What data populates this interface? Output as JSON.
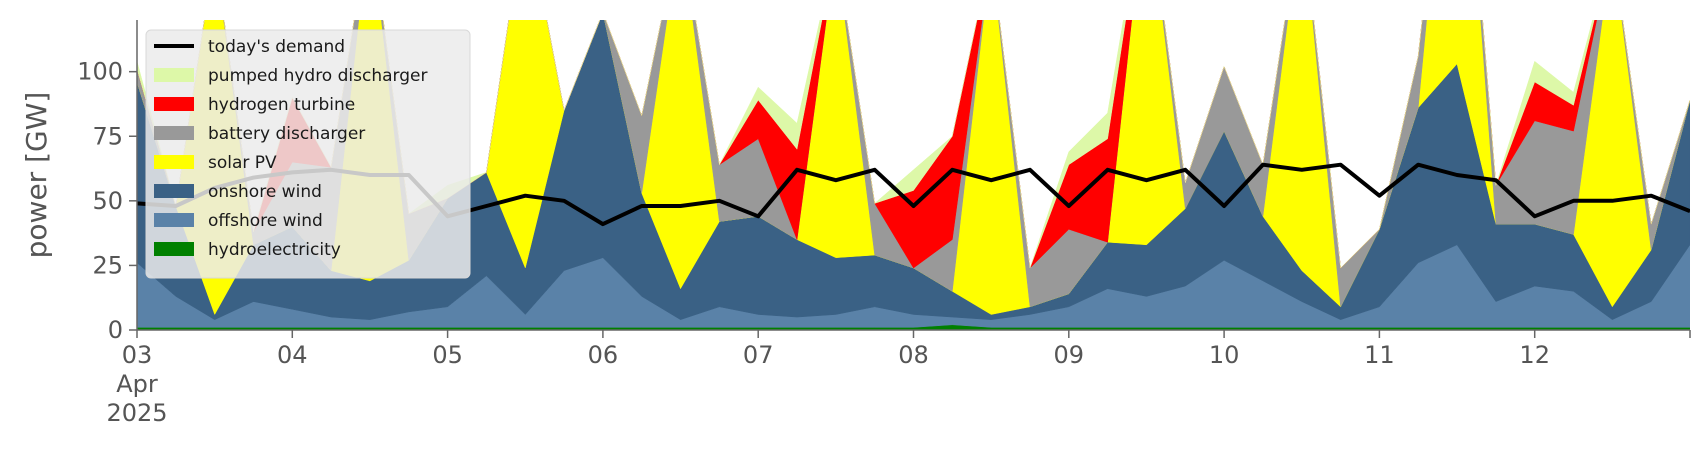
{
  "chart_data": {
    "type": "area",
    "ylabel": "power [GW]",
    "ylim": [
      0,
      120
    ],
    "xlim": [
      "2025-04-03T00:00",
      "2025-04-13T00:00"
    ],
    "yticks": [
      0,
      25,
      50,
      75,
      100
    ],
    "xticks": [
      {
        "x": "2025-04-03",
        "label": "03",
        "sub1": "Apr",
        "sub2": "2025"
      },
      {
        "x": "2025-04-04",
        "label": "04"
      },
      {
        "x": "2025-04-05",
        "label": "05"
      },
      {
        "x": "2025-04-06",
        "label": "06"
      },
      {
        "x": "2025-04-07",
        "label": "07"
      },
      {
        "x": "2025-04-08",
        "label": "08"
      },
      {
        "x": "2025-04-09",
        "label": "09"
      },
      {
        "x": "2025-04-10",
        "label": "10"
      },
      {
        "x": "2025-04-11",
        "label": "11"
      },
      {
        "x": "2025-04-12",
        "label": "12"
      }
    ],
    "legend": {
      "placement": "top-left"
    },
    "x": [
      "2025-04-03T00:00",
      "2025-04-03T06:00",
      "2025-04-03T12:00",
      "2025-04-03T18:00",
      "2025-04-04T00:00",
      "2025-04-04T06:00",
      "2025-04-04T12:00",
      "2025-04-04T18:00",
      "2025-04-05T00:00",
      "2025-04-05T06:00",
      "2025-04-05T12:00",
      "2025-04-05T18:00",
      "2025-04-06T00:00",
      "2025-04-06T06:00",
      "2025-04-06T12:00",
      "2025-04-06T18:00",
      "2025-04-07T00:00",
      "2025-04-07T06:00",
      "2025-04-07T12:00",
      "2025-04-07T18:00",
      "2025-04-08T00:00",
      "2025-04-08T06:00",
      "2025-04-08T12:00",
      "2025-04-08T18:00",
      "2025-04-09T00:00",
      "2025-04-09T06:00",
      "2025-04-09T12:00",
      "2025-04-09T18:00",
      "2025-04-10T00:00",
      "2025-04-10T06:00",
      "2025-04-10T12:00",
      "2025-04-10T18:00",
      "2025-04-11T00:00",
      "2025-04-11T06:00",
      "2025-04-11T12:00",
      "2025-04-11T18:00",
      "2025-04-12T00:00",
      "2025-04-12T06:00",
      "2025-04-12T12:00",
      "2025-04-12T18:00",
      "2025-04-13T00:00"
    ],
    "series": [
      {
        "name": "hydroelectricity",
        "color": "#008000",
        "values": [
          1,
          1,
          1,
          1,
          1,
          1,
          1,
          1,
          1,
          1,
          1,
          1,
          1,
          1,
          1,
          1,
          1,
          1,
          1,
          1,
          1,
          2,
          1,
          1,
          1,
          1,
          1,
          1,
          1,
          1,
          1,
          1,
          1,
          1,
          1,
          1,
          1,
          1,
          1,
          1,
          1
        ]
      },
      {
        "name": "offshore wind",
        "color": "#5a82a8",
        "values": [
          25,
          12,
          3,
          10,
          7,
          4,
          3,
          6,
          8,
          20,
          5,
          22,
          27,
          12,
          3,
          8,
          5,
          4,
          5,
          8,
          5,
          3,
          3,
          5,
          8,
          15,
          12,
          16,
          26,
          18,
          10,
          3,
          8,
          25,
          32,
          10,
          16,
          14,
          3,
          10,
          32
        ]
      },
      {
        "name": "onshore wind",
        "color": "#3a6185",
        "values": [
          70,
          35,
          2,
          22,
          32,
          18,
          15,
          20,
          42,
          40,
          18,
          62,
          95,
          40,
          12,
          33,
          38,
          30,
          22,
          20,
          18,
          10,
          2,
          3,
          5,
          18,
          20,
          30,
          50,
          25,
          12,
          5,
          30,
          60,
          70,
          30,
          24,
          22,
          5,
          20,
          56
        ]
      },
      {
        "name": "solar PV",
        "color": "#ffff00",
        "values": [
          0,
          0,
          140,
          0,
          0,
          0,
          140,
          0,
          0,
          0,
          140,
          0,
          0,
          0,
          140,
          0,
          0,
          0,
          120,
          0,
          0,
          0,
          140,
          0,
          0,
          0,
          140,
          0,
          0,
          0,
          140,
          0,
          0,
          0,
          140,
          0,
          0,
          0,
          140,
          0,
          0
        ]
      },
      {
        "name": "battery discharger",
        "color": "#999999",
        "values": [
          5,
          0,
          0,
          5,
          25,
          40,
          0,
          18,
          0,
          0,
          0,
          0,
          0,
          30,
          0,
          22,
          30,
          0,
          0,
          20,
          0,
          20,
          0,
          15,
          25,
          0,
          0,
          10,
          25,
          20,
          0,
          15,
          0,
          20,
          0,
          15,
          40,
          40,
          0,
          10,
          0
        ]
      },
      {
        "name": "hydrogen turbine",
        "color": "#ff0000",
        "values": [
          0,
          0,
          0,
          0,
          25,
          0,
          0,
          0,
          0,
          0,
          0,
          0,
          0,
          0,
          0,
          0,
          15,
          35,
          0,
          0,
          30,
          40,
          0,
          0,
          25,
          40,
          0,
          0,
          0,
          0,
          0,
          0,
          0,
          0,
          0,
          0,
          15,
          10,
          0,
          0,
          0
        ]
      },
      {
        "name": "pumped hydro discharger",
        "color": "#ddf8a8",
        "values": [
          3,
          0,
          0,
          0,
          0,
          0,
          0,
          0,
          5,
          0,
          0,
          0,
          0,
          0,
          0,
          0,
          5,
          10,
          0,
          0,
          8,
          0,
          0,
          0,
          5,
          10,
          0,
          0,
          0,
          0,
          0,
          0,
          0,
          0,
          0,
          0,
          8,
          5,
          0,
          0,
          0
        ]
      }
    ],
    "demand": {
      "name": "today's demand",
      "color": "#000000",
      "values": [
        49,
        48,
        55,
        59,
        61,
        62,
        60,
        60,
        44,
        48,
        52,
        50,
        41,
        48,
        48,
        50,
        44,
        62,
        58,
        62,
        48,
        62,
        58,
        62,
        48,
        62,
        58,
        62,
        48,
        64,
        62,
        64,
        52,
        64,
        60,
        58,
        44,
        50,
        50,
        52,
        46
      ]
    }
  }
}
